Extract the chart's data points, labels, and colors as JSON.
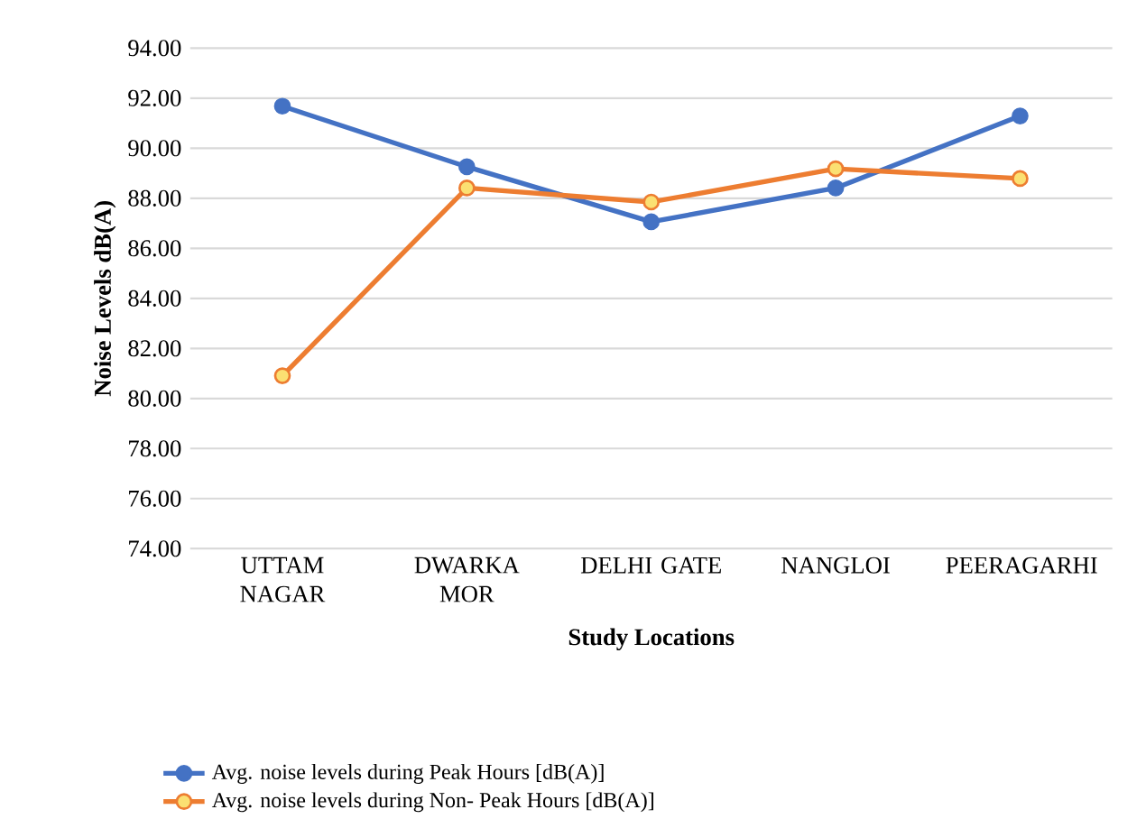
{
  "chart_data": {
    "type": "line",
    "xlabel": "Study Locations",
    "ylabel": "Noise Levels  dB(A)",
    "categories": [
      "UTTAM NAGAR",
      "DWARKA MOR",
      "DELHI GATE",
      "NANGLOI",
      "PEERAGARHI"
    ],
    "series": [
      {
        "name": "Avg. noise levels during Peak Hours [dB(A)]",
        "color": "#4472c4",
        "values": [
          91.68,
          89.26,
          87.06,
          88.41,
          91.29
        ]
      },
      {
        "name": "Avg. noise levels during  Non- Peak Hours [dB(A)]",
        "color": "#ed7d31",
        "values": [
          80.91,
          88.41,
          87.85,
          89.18,
          88.79
        ]
      }
    ],
    "ylim": [
      74,
      94
    ],
    "yticks": [
      {
        "value": 74,
        "label": "74.00"
      },
      {
        "value": 76,
        "label": "76.00"
      },
      {
        "value": 78,
        "label": "78.00"
      },
      {
        "value": 80,
        "label": "80.00"
      },
      {
        "value": 82,
        "label": "82.00"
      },
      {
        "value": 84,
        "label": "84.00"
      },
      {
        "value": 86,
        "label": "86.00"
      },
      {
        "value": 88,
        "label": "88.00"
      },
      {
        "value": 90,
        "label": "90.00"
      },
      {
        "value": 92,
        "label": "92.00"
      },
      {
        "value": 94,
        "label": "94.00"
      }
    ],
    "grid": "y",
    "legend": "bottom",
    "marker": "circle",
    "line_style": "solid"
  }
}
